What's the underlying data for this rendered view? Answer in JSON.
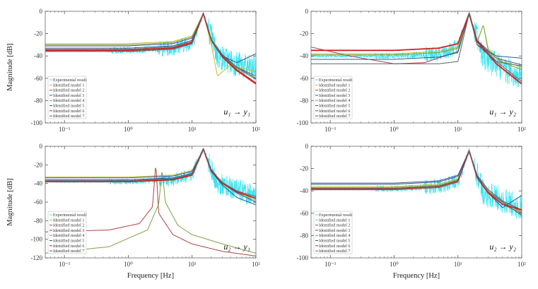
{
  "chart_data": [
    {
      "type": "line",
      "panel": "top-left",
      "annotation": "u₁ → y₁",
      "ylabel": "Magnitude [dB]",
      "xlabel": "",
      "xscale": "log",
      "xlim": [
        0.05,
        100
      ],
      "ylim": [
        -100,
        0
      ],
      "xticks": [
        "10⁻¹",
        "10⁰",
        "10¹",
        "10²"
      ],
      "xtick_values": [
        0.1,
        1,
        10,
        100
      ],
      "yticks": [
        "0",
        "-20",
        "-40",
        "-60",
        "-80",
        "-100"
      ],
      "ytick_values": [
        0,
        -20,
        -40,
        -60,
        -80,
        -100
      ],
      "legend_position": "bottom-left",
      "resonance_hz": 15,
      "series": [
        {
          "name": "Experimental result",
          "color": "#35e3f0",
          "noisy": true,
          "x": [
            0.05,
            1,
            5,
            10,
            15,
            25,
            40,
            70,
            100
          ],
          "y": [
            -35,
            -35,
            -33,
            -28,
            -2,
            -40,
            -45,
            -50,
            -52
          ]
        },
        {
          "name": "Identified model 1",
          "color": "#bfbf30",
          "x": [
            0.05,
            1,
            5,
            10,
            15,
            20,
            25,
            40,
            70,
            100
          ],
          "y": [
            -29,
            -29,
            -27,
            -22,
            -2,
            -30,
            -58,
            -48,
            -52,
            -54
          ]
        },
        {
          "name": "Identified model 2",
          "color": "#b04040",
          "x": [
            0.05,
            1,
            5,
            10,
            15,
            20,
            30,
            50,
            100
          ],
          "y": [
            -34,
            -34,
            -32,
            -27,
            -2,
            -25,
            -40,
            -52,
            -64
          ]
        },
        {
          "name": "Identified model 3",
          "color": "#4a4aa0",
          "x": [
            0.05,
            1,
            5,
            10,
            15,
            20,
            30,
            50,
            100
          ],
          "y": [
            -31,
            -31,
            -29,
            -24,
            -2,
            -25,
            -39,
            -50,
            -60
          ]
        },
        {
          "name": "Identified model 4",
          "color": "#7aa040",
          "x": [
            0.05,
            1,
            5,
            10,
            15,
            20,
            30,
            50,
            100
          ],
          "y": [
            -30,
            -30,
            -28,
            -23,
            -2,
            -25,
            -40,
            -51,
            -61
          ]
        },
        {
          "name": "Identified model 5",
          "color": "#2a5a8a",
          "x": [
            0.05,
            1,
            5,
            10,
            15,
            20,
            30,
            50,
            100
          ],
          "y": [
            -33,
            -33,
            -31,
            -26,
            -2,
            -26,
            -40,
            -46,
            -38
          ]
        },
        {
          "name": "Identified model 6",
          "color": "#d02020",
          "x": [
            0.05,
            1,
            5,
            10,
            15,
            20,
            30,
            50,
            100
          ],
          "y": [
            -35,
            -35,
            -33,
            -28,
            -2,
            -26,
            -41,
            -53,
            -65
          ]
        },
        {
          "name": "Identified model 7",
          "color": "#606060",
          "x": [
            0.05,
            1,
            5,
            10,
            15,
            20,
            30,
            50,
            100
          ],
          "y": [
            -36,
            -36,
            -34,
            -29,
            -2,
            -26,
            -40,
            -50,
            -58
          ]
        }
      ]
    },
    {
      "type": "line",
      "panel": "top-right",
      "annotation": "u₁ → y₂",
      "ylabel": "",
      "xlabel": "",
      "xscale": "log",
      "xlim": [
        0.05,
        100
      ],
      "ylim": [
        -100,
        0
      ],
      "xticks": [
        "10⁻¹",
        "10⁰",
        "10¹",
        "10²"
      ],
      "xtick_values": [
        0.1,
        1,
        10,
        100
      ],
      "yticks": [
        "0",
        "-20",
        "-40",
        "-60",
        "-80",
        "-100"
      ],
      "ytick_values": [
        0,
        -20,
        -40,
        -60,
        -80,
        -100
      ],
      "legend_position": "bottom-left",
      "resonance_hz": 15,
      "series": [
        {
          "name": "Experimental result",
          "color": "#35e3f0",
          "noisy": true,
          "x": [
            0.05,
            1,
            5,
            10,
            15,
            25,
            40,
            70,
            100
          ],
          "y": [
            -40,
            -40,
            -38,
            -32,
            -2,
            -42,
            -48,
            -55,
            -58
          ]
        },
        {
          "name": "Identified model 1",
          "color": "#bfbf30",
          "x": [
            0.05,
            1,
            5,
            10,
            15,
            20,
            25,
            30,
            50,
            100
          ],
          "y": [
            -38,
            -38,
            -36,
            -32,
            -3,
            -28,
            -12,
            -34,
            -45,
            -50
          ]
        },
        {
          "name": "Identified model 2",
          "color": "#b04040",
          "x": [
            0.05,
            0.2,
            1,
            3,
            10,
            15,
            20,
            40,
            100
          ],
          "y": [
            -32,
            -40,
            -47,
            -46,
            -36,
            -2,
            -26,
            -45,
            -63
          ]
        },
        {
          "name": "Identified model 3",
          "color": "#4a4aa0",
          "x": [
            0.05,
            1,
            5,
            10,
            15,
            20,
            40,
            100
          ],
          "y": [
            -35,
            -35,
            -33,
            -29,
            -2,
            -26,
            -42,
            -48
          ]
        },
        {
          "name": "Identified model 4",
          "color": "#7aa040",
          "x": [
            0.05,
            1,
            5,
            10,
            15,
            20,
            25,
            30,
            50,
            100
          ],
          "y": [
            -39,
            -39,
            -37,
            -33,
            -3,
            -28,
            -12,
            -36,
            -46,
            -52
          ]
        },
        {
          "name": "Identified model 5",
          "color": "#2a5a8a",
          "x": [
            0.05,
            1,
            5,
            10,
            15,
            20,
            40,
            100
          ],
          "y": [
            -43,
            -43,
            -41,
            -37,
            -2,
            -30,
            -40,
            -42
          ]
        },
        {
          "name": "Identified model 6",
          "color": "#d02020",
          "x": [
            0.05,
            1,
            5,
            10,
            15,
            20,
            40,
            100
          ],
          "y": [
            -35,
            -35,
            -33,
            -29,
            -2,
            -27,
            -47,
            -65
          ]
        },
        {
          "name": "Identified model 7",
          "color": "#606060",
          "x": [
            0.05,
            1,
            5,
            10,
            15,
            20,
            40,
            100
          ],
          "y": [
            -47,
            -47,
            -47,
            -45,
            -2,
            -30,
            -45,
            -49
          ]
        }
      ]
    },
    {
      "type": "line",
      "panel": "bottom-left",
      "annotation": "u₂ → y₁",
      "ylabel": "Magnitude [dB]",
      "xlabel": "Frequency [Hz]",
      "xscale": "log",
      "xlim": [
        0.05,
        100
      ],
      "ylim": [
        -120,
        0
      ],
      "xticks": [
        "10⁻¹",
        "10⁰",
        "10¹",
        "10²"
      ],
      "xtick_values": [
        0.1,
        1,
        10,
        100
      ],
      "yticks": [
        "0",
        "-20",
        "-40",
        "-60",
        "-80",
        "-100",
        "-120"
      ],
      "ytick_values": [
        0,
        -20,
        -40,
        -60,
        -80,
        -100,
        -120
      ],
      "legend_position": "bottom-left",
      "resonance_hz": 15,
      "series": [
        {
          "name": "Experimental result",
          "color": "#35e3f0",
          "noisy": true,
          "x": [
            0.05,
            1,
            5,
            10,
            15,
            25,
            40,
            70,
            100
          ],
          "y": [
            -38,
            -38,
            -36,
            -31,
            -3,
            -40,
            -44,
            -50,
            -54
          ]
        },
        {
          "name": "Identified model 1",
          "color": "#bfbf30",
          "x": [
            0.05,
            1,
            5,
            10,
            15,
            20,
            30,
            50,
            100
          ],
          "y": [
            -33,
            -33,
            -31,
            -26,
            -3,
            -26,
            -40,
            -50,
            -58
          ]
        },
        {
          "name": "Identified model 2",
          "color": "#b04040",
          "x": [
            0.05,
            0.5,
            1.5,
            2.4,
            2.7,
            3.0,
            5,
            10,
            30,
            100
          ],
          "y": [
            -92,
            -90,
            -83,
            -65,
            -18,
            -72,
            -95,
            -105,
            -113,
            -118
          ]
        },
        {
          "name": "Identified model 3",
          "color": "#4a4aa0",
          "x": [
            0.05,
            1,
            5,
            10,
            15,
            20,
            30,
            50,
            100
          ],
          "y": [
            -34,
            -34,
            -32,
            -27,
            -3,
            -25,
            -40,
            -50,
            -60
          ]
        },
        {
          "name": "Identified model 4",
          "color": "#7aa040",
          "x": [
            0.05,
            0.5,
            2,
            3.0,
            3.4,
            3.8,
            6,
            10,
            30,
            100
          ],
          "y": [
            -115,
            -108,
            -90,
            -62,
            -25,
            -60,
            -85,
            -95,
            -105,
            -115
          ]
        },
        {
          "name": "Identified model 5",
          "color": "#2a5a8a",
          "x": [
            0.05,
            1,
            5,
            10,
            15,
            20,
            30,
            50,
            100
          ],
          "y": [
            -36,
            -36,
            -34,
            -29,
            -3,
            -27,
            -42,
            -55,
            -63
          ]
        },
        {
          "name": "Identified model 6",
          "color": "#d02020",
          "x": [
            0.05,
            1,
            5,
            10,
            15,
            20,
            30,
            50,
            100
          ],
          "y": [
            -38,
            -38,
            -36,
            -31,
            -3,
            -27,
            -40,
            -49,
            -56
          ]
        },
        {
          "name": "Identified model 7",
          "color": "#606060",
          "x": [
            0.05,
            1,
            5,
            10,
            15,
            20,
            30,
            50,
            100
          ],
          "y": [
            -37,
            -37,
            -35,
            -30,
            -3,
            -26,
            -39,
            -48,
            -54
          ]
        }
      ]
    },
    {
      "type": "line",
      "panel": "bottom-right",
      "annotation": "u₂ → y₂",
      "ylabel": "",
      "xlabel": "Frequency [Hz]",
      "xscale": "log",
      "xlim": [
        0.05,
        100
      ],
      "ylim": [
        -100,
        0
      ],
      "xticks": [
        "10⁻¹",
        "10⁰",
        "10¹",
        "10²"
      ],
      "xtick_values": [
        0.1,
        1,
        10,
        100
      ],
      "yticks": [
        "0",
        "-20",
        "-40",
        "-60",
        "-80",
        "-100"
      ],
      "ytick_values": [
        0,
        -20,
        -40,
        -60,
        -80,
        -100
      ],
      "legend_position": "bottom-left",
      "resonance_hz": 15,
      "series": [
        {
          "name": "Experimental result",
          "color": "#35e3f0",
          "noisy": true,
          "x": [
            0.05,
            1,
            5,
            10,
            15,
            25,
            40,
            70,
            100
          ],
          "y": [
            -38,
            -38,
            -36,
            -31,
            -4,
            -42,
            -46,
            -52,
            -55
          ]
        },
        {
          "name": "Identified model 1",
          "color": "#bfbf30",
          "x": [
            0.05,
            1,
            5,
            10,
            15,
            20,
            30,
            50,
            100
          ],
          "y": [
            -36,
            -36,
            -34,
            -29,
            -4,
            -27,
            -40,
            -50,
            -58
          ]
        },
        {
          "name": "Identified model 2",
          "color": "#b04040",
          "x": [
            0.05,
            1,
            5,
            10,
            15,
            20,
            30,
            50,
            100
          ],
          "y": [
            -39,
            -39,
            -37,
            -32,
            -4,
            -28,
            -42,
            -52,
            -60
          ]
        },
        {
          "name": "Identified model 3",
          "color": "#4a4aa0",
          "x": [
            0.05,
            1,
            5,
            10,
            15,
            20,
            30,
            50,
            100
          ],
          "y": [
            -33,
            -33,
            -31,
            -26,
            -4,
            -26,
            -39,
            -49,
            -57
          ]
        },
        {
          "name": "Identified model 4",
          "color": "#7aa040",
          "x": [
            0.05,
            1,
            5,
            10,
            15,
            20,
            30,
            50,
            100
          ],
          "y": [
            -37,
            -37,
            -35,
            -30,
            -4,
            -27,
            -41,
            -50,
            -59
          ]
        },
        {
          "name": "Identified model 5",
          "color": "#2a5a8a",
          "x": [
            0.05,
            1,
            5,
            10,
            15,
            20,
            30,
            50,
            100
          ],
          "y": [
            -34,
            -34,
            -32,
            -27,
            -4,
            -27,
            -42,
            -55,
            -44
          ]
        },
        {
          "name": "Identified model 6",
          "color": "#d02020",
          "x": [
            0.05,
            1,
            5,
            10,
            15,
            20,
            30,
            50,
            100
          ],
          "y": [
            -38,
            -38,
            -36,
            -31,
            -4,
            -28,
            -42,
            -52,
            -57
          ]
        },
        {
          "name": "Identified model 7",
          "color": "#606060",
          "x": [
            0.05,
            1,
            5,
            10,
            15,
            20,
            30,
            50,
            100
          ],
          "y": [
            -38,
            -38,
            -36,
            -31,
            -4,
            -28,
            -41,
            -50,
            -62
          ]
        }
      ]
    }
  ]
}
